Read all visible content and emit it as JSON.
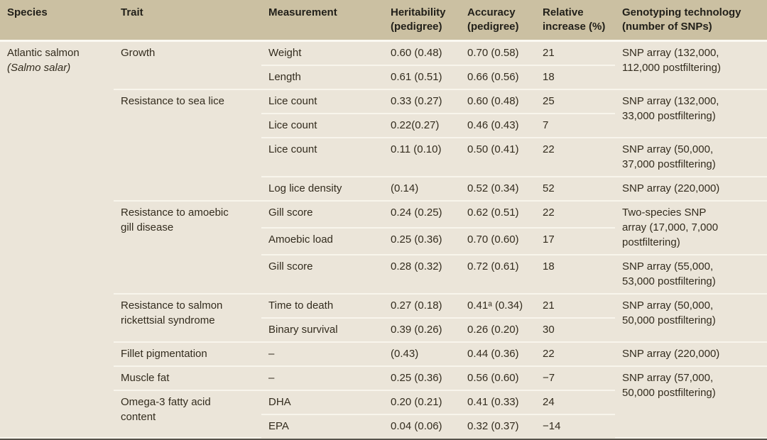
{
  "table": {
    "header": [
      "Species",
      "Trait",
      "Measurement",
      "Heritability\n(pedigree)",
      "Accuracy\n(pedigree)",
      "Relative\nincrease (%)",
      "Genotyping technology\n(number of SNPs)"
    ],
    "rows": [
      {
        "species": "Atlantic salmon",
        "species_latin": "(Salmo salar)",
        "species_rows": 15,
        "trait": "Growth",
        "trait_rows": 2,
        "measurement": "Weight",
        "heritability": "0.60 (0.48)",
        "accuracy": "0.70 (0.58)",
        "relative_increase": "21",
        "genotyping": "SNP array (132,000,\n112,000 postfiltering)",
        "geno_rows": 2
      },
      {
        "measurement": "Length",
        "heritability": "0.61 (0.51)",
        "accuracy": "0.66 (0.56)",
        "relative_increase": "18"
      },
      {
        "trait": "Resistance to sea lice",
        "trait_rows": 4,
        "measurement": "Lice count",
        "heritability": "0.33 (0.27)",
        "accuracy": "0.60 (0.48)",
        "relative_increase": "25",
        "genotyping": "SNP array (132,000,\n33,000 postfiltering)",
        "geno_rows": 2
      },
      {
        "measurement": "Lice count",
        "heritability": "0.22(0.27)",
        "accuracy": "0.46 (0.43)",
        "relative_increase": "7"
      },
      {
        "measurement": "Lice count",
        "heritability": "0.11 (0.10)",
        "accuracy": "0.50 (0.41)",
        "relative_increase": "22",
        "genotyping": "SNP array (50,000,\n37,000 postfiltering)",
        "geno_rows": 1
      },
      {
        "measurement": "Log lice density",
        "heritability": "(0.14)",
        "accuracy": "0.52 (0.34)",
        "relative_increase": "52",
        "genotyping": "SNP array (220,000)",
        "geno_rows": 1
      },
      {
        "trait": "Resistance to amoebic\ngill disease",
        "trait_rows": 3,
        "measurement": "Gill score",
        "heritability": "0.24 (0.25)",
        "accuracy": "0.62 (0.51)",
        "relative_increase": "22",
        "genotyping": "Two-species SNP\narray (17,000, 7,000\npostfiltering)",
        "geno_rows": 2
      },
      {
        "measurement": "Amoebic load",
        "heritability": "0.25 (0.36)",
        "accuracy": "0.70 (0.60)",
        "relative_increase": "17"
      },
      {
        "measurement": "Gill score",
        "heritability": "0.28 (0.32)",
        "accuracy": "0.72 (0.61)",
        "relative_increase": "18",
        "genotyping": "SNP array (55,000,\n53,000 postfiltering)",
        "geno_rows": 1
      },
      {
        "trait": "Resistance to salmon\nrickettsial syndrome",
        "trait_rows": 2,
        "measurement": "Time to death",
        "heritability": "0.27 (0.18)",
        "accuracy": "0.41ᵃ (0.34)",
        "relative_increase": "21",
        "genotyping": "SNP array (50,000,\n50,000 postfiltering)",
        "geno_rows": 2
      },
      {
        "measurement": "Binary survival",
        "heritability": "0.39 (0.26)",
        "accuracy": "0.26 (0.20)",
        "relative_increase": "30"
      },
      {
        "trait": "Fillet pigmentation",
        "trait_rows": 1,
        "measurement": "–",
        "heritability": "(0.43)",
        "accuracy": "0.44 (0.36)",
        "relative_increase": "22",
        "genotyping": "SNP array (220,000)",
        "geno_rows": 1
      },
      {
        "trait": "Muscle fat",
        "trait_rows": 1,
        "measurement": "–",
        "heritability": "0.25 (0.36)",
        "accuracy": "0.56 (0.60)",
        "relative_increase": "−7",
        "genotyping": "SNP array (57,000,\n50,000 postfiltering)",
        "geno_rows": 3
      },
      {
        "trait": "Omega-3 fatty acid\ncontent",
        "trait_rows": 2,
        "measurement": "DHA",
        "heritability": "0.20 (0.21)",
        "accuracy": "0.41 (0.33)",
        "relative_increase": "24"
      },
      {
        "measurement": "EPA",
        "heritability": "0.04 (0.06)",
        "accuracy": "0.32 (0.37)",
        "relative_increase": "−14"
      }
    ]
  },
  "colors": {
    "header_bg": "#cbc0a2",
    "body_bg": "#ebe5d9",
    "separator_line": "#f8f5ec",
    "page_bg": "#f5f1e6",
    "bottom_rule": "#56524a",
    "header_text": "#22201a",
    "body_text": "#332c1e"
  }
}
